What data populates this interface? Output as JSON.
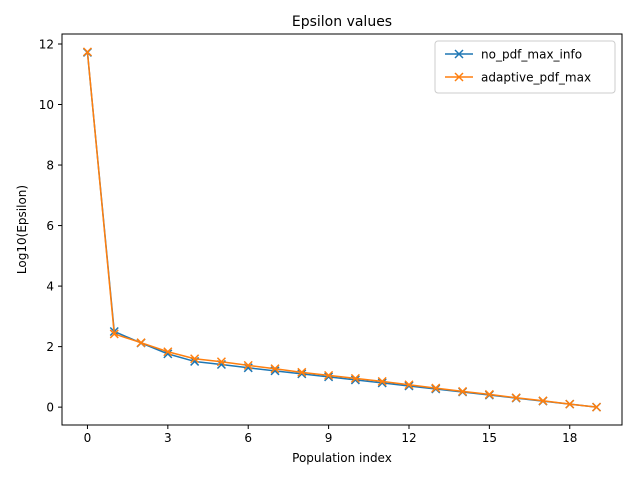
{
  "chart_data": {
    "type": "line",
    "title": "Epsilon values",
    "xlabel": "Population index",
    "ylabel": "Log10(Epsilon)",
    "x": [
      0,
      1,
      2,
      3,
      4,
      5,
      6,
      7,
      8,
      9,
      10,
      11,
      12,
      13,
      14,
      15,
      16,
      17,
      18,
      19
    ],
    "xlim": [
      -0.95,
      19.95
    ],
    "ylim": [
      -0.59,
      12.33
    ],
    "xticks": [
      0,
      3,
      6,
      9,
      12,
      15,
      18
    ],
    "yticks": [
      0,
      2,
      4,
      6,
      8,
      10,
      12
    ],
    "legend_position": "top-right",
    "grid": false,
    "marker": "x",
    "series": [
      {
        "name": "no_pdf_max_info",
        "color": "#1f77b4",
        "values": [
          11.72,
          2.5,
          2.12,
          1.76,
          1.51,
          1.41,
          1.3,
          1.2,
          1.1,
          1.0,
          0.9,
          0.8,
          0.7,
          0.6,
          0.5,
          0.4,
          0.3,
          0.2,
          0.1,
          0.0
        ]
      },
      {
        "name": "adaptive_pdf_max",
        "color": "#ff7f0e",
        "values": [
          11.74,
          2.42,
          2.13,
          1.83,
          1.6,
          1.5,
          1.38,
          1.27,
          1.15,
          1.05,
          0.95,
          0.85,
          0.74,
          0.63,
          0.52,
          0.42,
          0.31,
          0.21,
          0.1,
          0.0
        ]
      }
    ]
  }
}
